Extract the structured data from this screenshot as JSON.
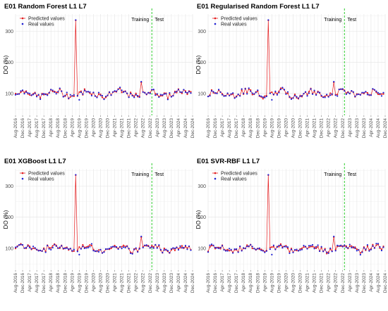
{
  "chart_data": [
    {
      "type": "line",
      "title": "E01 Random Forest L1 L7",
      "xlabel": "",
      "ylabel": "DO (%)",
      "ylim": [
        30,
        355
      ],
      "yticks": [
        100,
        200,
        300
      ],
      "legend": "top-left",
      "grid": true,
      "split_labels": {
        "train": "Training",
        "test": "Test"
      },
      "split_date": "Jan-2023",
      "x_ticks": [
        "Aug-2016",
        "Dec-2016",
        "Apr-2017",
        "Aug-2017",
        "Dec-2017",
        "Apr-2018",
        "Aug-2018",
        "Dec-2018",
        "Apr-2019",
        "Aug-2019",
        "Dec-2019",
        "Apr-2020",
        "Aug-2020",
        "Dec-2020",
        "Apr-2021",
        "Aug-2021",
        "Dec-2021",
        "Apr-2022",
        "Aug-2022",
        "Dec-2022",
        "Apr-2023",
        "Aug-2023",
        "Dec-2023",
        "Apr-2024",
        "Aug-2024",
        "Dec-2024"
      ],
      "series": [
        {
          "name": "Predicted values",
          "color": "#e41a1c",
          "kind": "line+points"
        },
        {
          "name": "Real values",
          "color": "#1f1fd1",
          "kind": "points"
        }
      ]
    },
    {
      "type": "line",
      "title": "E01 Regularised Random Forest L1 L7",
      "xlabel": "",
      "ylabel": "DO (%)",
      "ylim": [
        30,
        355
      ],
      "yticks": [
        100,
        200,
        300
      ],
      "legend": "top-left",
      "grid": true,
      "split_labels": {
        "train": "Training",
        "test": "Test"
      },
      "split_date": "Jan-2023",
      "x_ticks": [
        "Aug-2016",
        "Dec-2016",
        "Apr-2017",
        "Aug-2017",
        "Dec-2017",
        "Apr-2018",
        "Aug-2018",
        "Dec-2018",
        "Apr-2019",
        "Aug-2019",
        "Dec-2019",
        "Apr-2020",
        "Aug-2020",
        "Dec-2020",
        "Apr-2021",
        "Aug-2021",
        "Dec-2021",
        "Apr-2022",
        "Aug-2022",
        "Dec-2022",
        "Apr-2023",
        "Aug-2023",
        "Dec-2023",
        "Apr-2024",
        "Aug-2024",
        "Dec-2024"
      ],
      "series": [
        {
          "name": "Predicted values",
          "color": "#e41a1c",
          "kind": "line+points"
        },
        {
          "name": "Real values",
          "color": "#1f1fd1",
          "kind": "points"
        }
      ]
    },
    {
      "type": "line",
      "title": "E01 XGBoost L1 L7",
      "xlabel": "",
      "ylabel": "DO (%)",
      "ylim": [
        30,
        355
      ],
      "yticks": [
        100,
        200,
        300
      ],
      "legend": "top-left",
      "grid": true,
      "split_labels": {
        "train": "Training",
        "test": "Test"
      },
      "split_date": "Jan-2023",
      "x_ticks": [
        "Aug-2016",
        "Dec-2016",
        "Apr-2017",
        "Aug-2017",
        "Dec-2017",
        "Apr-2018",
        "Aug-2018",
        "Dec-2018",
        "Apr-2019",
        "Aug-2019",
        "Dec-2019",
        "Apr-2020",
        "Aug-2020",
        "Dec-2020",
        "Apr-2021",
        "Aug-2021",
        "Dec-2021",
        "Apr-2022",
        "Aug-2022",
        "Dec-2022",
        "Apr-2023",
        "Aug-2023",
        "Dec-2023",
        "Apr-2024",
        "Aug-2024",
        "Dec-2024"
      ],
      "series": [
        {
          "name": "Predicted values",
          "color": "#e41a1c",
          "kind": "line+points"
        },
        {
          "name": "Real values",
          "color": "#1f1fd1",
          "kind": "points"
        }
      ]
    },
    {
      "type": "line",
      "title": "E01 SVR-RBF L1 L7",
      "xlabel": "",
      "ylabel": "DO (%)",
      "ylim": [
        30,
        355
      ],
      "yticks": [
        100,
        200,
        300
      ],
      "legend": "top-left",
      "grid": true,
      "split_labels": {
        "train": "Training",
        "test": "Test"
      },
      "split_date": "Jan-2023",
      "x_ticks": [
        "Aug-2016",
        "Dec-2016",
        "Apr-2017",
        "Aug-2017",
        "Dec-2017",
        "Apr-2018",
        "Aug-2018",
        "Dec-2018",
        "Apr-2019",
        "Aug-2019",
        "Dec-2019",
        "Apr-2020",
        "Aug-2020",
        "Dec-2020",
        "Apr-2021",
        "Aug-2021",
        "Dec-2021",
        "Apr-2022",
        "Aug-2022",
        "Dec-2022",
        "Apr-2023",
        "Aug-2023",
        "Dec-2023",
        "Apr-2024",
        "Aug-2024",
        "Dec-2024"
      ],
      "series": [
        {
          "name": "Predicted values",
          "color": "#e41a1c",
          "kind": "line+points"
        },
        {
          "name": "Real values",
          "color": "#1f1fd1",
          "kind": "points"
        }
      ]
    }
  ]
}
